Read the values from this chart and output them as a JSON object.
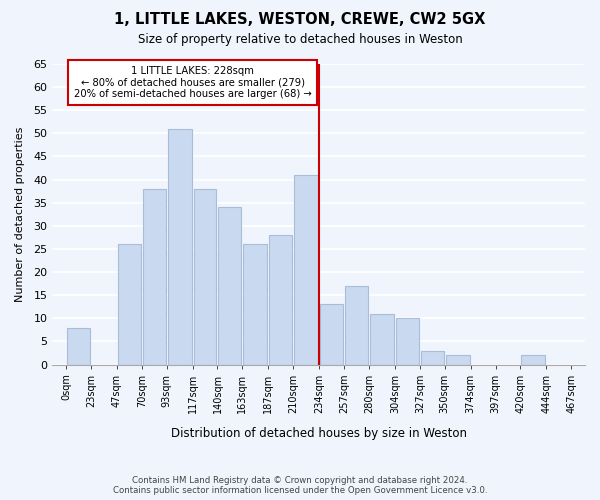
{
  "title": "1, LITTLE LAKES, WESTON, CREWE, CW2 5GX",
  "subtitle": "Size of property relative to detached houses in Weston",
  "xlabel": "Distribution of detached houses by size in Weston",
  "ylabel": "Number of detached properties",
  "bin_edges": [
    0,
    23,
    47,
    70,
    93,
    117,
    140,
    163,
    187,
    210,
    234,
    257,
    280,
    304,
    327,
    350,
    374,
    397,
    420,
    444,
    467
  ],
  "bin_labels": [
    "0sqm",
    "23sqm",
    "47sqm",
    "70sqm",
    "93sqm",
    "117sqm",
    "140sqm",
    "163sqm",
    "187sqm",
    "210sqm",
    "234sqm",
    "257sqm",
    "280sqm",
    "304sqm",
    "327sqm",
    "350sqm",
    "374sqm",
    "397sqm",
    "420sqm",
    "444sqm",
    "467sqm"
  ],
  "bar_values": [
    8,
    0,
    26,
    38,
    51,
    38,
    34,
    26,
    28,
    41,
    13,
    17,
    11,
    10,
    3,
    2,
    0,
    0,
    2,
    0
  ],
  "bar_color": "#c9d9f0",
  "bar_edge_color": "#aabdd8",
  "reference_line_label": "1 LITTLE LAKES: 228sqm",
  "annotation_line1": "← 80% of detached houses are smaller (279)",
  "annotation_line2": "20% of semi-detached houses are larger (68) →",
  "annotation_box_color": "#ffffff",
  "annotation_box_edge": "#cc0000",
  "ref_line_color": "#cc0000",
  "ref_line_bin_index": 10,
  "ylim": [
    0,
    65
  ],
  "yticks": [
    0,
    5,
    10,
    15,
    20,
    25,
    30,
    35,
    40,
    45,
    50,
    55,
    60,
    65
  ],
  "footer_line1": "Contains HM Land Registry data © Crown copyright and database right 2024.",
  "footer_line2": "Contains public sector information licensed under the Open Government Licence v3.0.",
  "background_color": "#f0f4fc"
}
